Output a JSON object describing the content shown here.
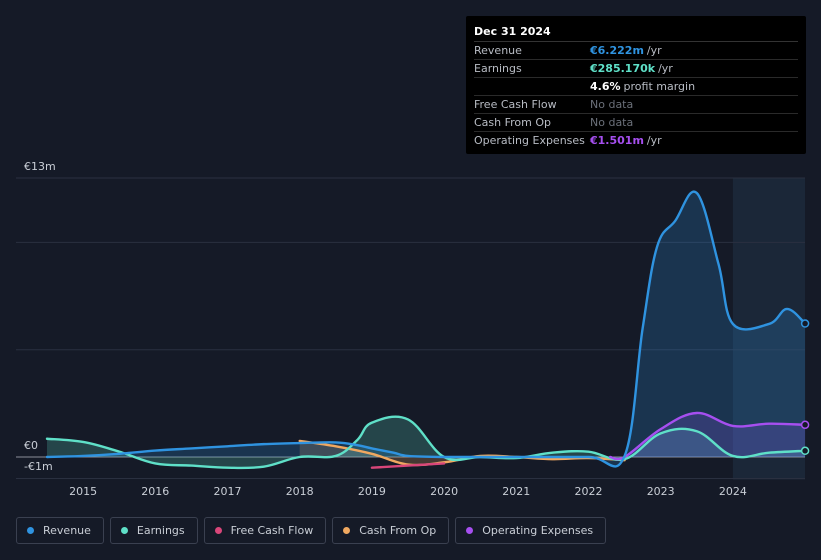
{
  "tooltip": {
    "date": "Dec 31 2024",
    "rows": [
      {
        "label": "Revenue",
        "value": "€6.222m",
        "unit": "/yr",
        "color": "#2f93e0"
      },
      {
        "label": "Earnings",
        "value": "€285.170k",
        "unit": "/yr",
        "color": "#5fe0c8"
      },
      {
        "label": "",
        "value": "4.6%",
        "unit": "profit margin",
        "color": "#ffffff"
      },
      {
        "label": "Free Cash Flow",
        "value": "No data",
        "unit": "",
        "color": "#6b707a"
      },
      {
        "label": "Cash From Op",
        "value": "No data",
        "unit": "",
        "color": "#6b707a"
      },
      {
        "label": "Operating Expenses",
        "value": "€1.501m",
        "unit": "/yr",
        "color": "#a64ff0"
      }
    ]
  },
  "legend": [
    {
      "label": "Revenue",
      "color": "#2f93e0"
    },
    {
      "label": "Earnings",
      "color": "#5fe0c8"
    },
    {
      "label": "Free Cash Flow",
      "color": "#d9467a"
    },
    {
      "label": "Cash From Op",
      "color": "#f0a860"
    },
    {
      "label": "Operating Expenses",
      "color": "#a64ff0"
    }
  ],
  "chart_data": {
    "type": "line",
    "y_unit_labels": {
      "top": "€13m",
      "zero": "€0",
      "bottom": "-€1m"
    },
    "ylim": [
      -1,
      13
    ],
    "xlim": [
      2014.5,
      2025.0
    ],
    "x_ticks": [
      2015,
      2016,
      2017,
      2018,
      2019,
      2020,
      2021,
      2022,
      2023,
      2024
    ],
    "x_tick_labels": [
      "2015",
      "2016",
      "2017",
      "2018",
      "2019",
      "2020",
      "2021",
      "2022",
      "2023",
      "2024"
    ],
    "highlight_start": 2024.0,
    "grid": true,
    "series": [
      {
        "name": "Revenue",
        "color": "#2f93e0",
        "fill": true,
        "points": [
          [
            2014.5,
            0.0
          ],
          [
            2015.0,
            0.05
          ],
          [
            2015.5,
            0.15
          ],
          [
            2016.0,
            0.3
          ],
          [
            2016.5,
            0.4
          ],
          [
            2017.0,
            0.5
          ],
          [
            2017.5,
            0.6
          ],
          [
            2018.0,
            0.65
          ],
          [
            2018.5,
            0.68
          ],
          [
            2018.8,
            0.55
          ],
          [
            2019.0,
            0.4
          ],
          [
            2019.3,
            0.2
          ],
          [
            2019.5,
            0.05
          ],
          [
            2020.0,
            0.0
          ],
          [
            2021.0,
            0.0
          ],
          [
            2022.0,
            0.0
          ],
          [
            2022.5,
            0.05
          ],
          [
            2022.75,
            6.0
          ],
          [
            2022.95,
            9.8
          ],
          [
            2023.2,
            11.0
          ],
          [
            2023.5,
            12.3
          ],
          [
            2023.8,
            9.0
          ],
          [
            2024.0,
            6.2
          ],
          [
            2024.5,
            6.2
          ],
          [
            2024.75,
            6.9
          ],
          [
            2025.0,
            6.22
          ]
        ]
      },
      {
        "name": "Earnings",
        "color": "#5fe0c8",
        "fill": true,
        "points": [
          [
            2014.5,
            0.85
          ],
          [
            2015.0,
            0.7
          ],
          [
            2015.5,
            0.25
          ],
          [
            2016.0,
            -0.3
          ],
          [
            2016.5,
            -0.4
          ],
          [
            2017.0,
            -0.5
          ],
          [
            2017.5,
            -0.45
          ],
          [
            2018.0,
            0.0
          ],
          [
            2018.5,
            0.05
          ],
          [
            2018.8,
            0.8
          ],
          [
            2019.0,
            1.6
          ],
          [
            2019.5,
            1.75
          ],
          [
            2020.0,
            0.0
          ],
          [
            2020.5,
            0.0
          ],
          [
            2021.0,
            -0.05
          ],
          [
            2021.5,
            0.2
          ],
          [
            2022.0,
            0.25
          ],
          [
            2022.5,
            -0.1
          ],
          [
            2023.0,
            1.1
          ],
          [
            2023.5,
            1.2
          ],
          [
            2024.0,
            0.05
          ],
          [
            2024.5,
            0.2
          ],
          [
            2025.0,
            0.29
          ]
        ]
      },
      {
        "name": "Free Cash Flow",
        "color": "#d9467a",
        "fill": false,
        "points": [
          [
            2019.0,
            -0.5
          ],
          [
            2019.5,
            -0.4
          ],
          [
            2020.0,
            -0.3
          ]
        ]
      },
      {
        "name": "Cash From Op",
        "color": "#f0a860",
        "fill": true,
        "points": [
          [
            2018.0,
            0.75
          ],
          [
            2018.5,
            0.5
          ],
          [
            2019.0,
            0.15
          ],
          [
            2019.5,
            -0.35
          ],
          [
            2020.0,
            -0.25
          ],
          [
            2020.5,
            0.05
          ],
          [
            2021.0,
            0.0
          ],
          [
            2021.5,
            -0.1
          ],
          [
            2022.0,
            -0.05
          ],
          [
            2022.5,
            -0.15
          ]
        ]
      },
      {
        "name": "Operating Expenses",
        "color": "#a64ff0",
        "fill": true,
        "points": [
          [
            2022.3,
            0.0
          ],
          [
            2022.5,
            0.0
          ],
          [
            2023.0,
            1.3
          ],
          [
            2023.5,
            2.05
          ],
          [
            2024.0,
            1.45
          ],
          [
            2024.5,
            1.55
          ],
          [
            2025.0,
            1.5
          ]
        ]
      }
    ]
  }
}
